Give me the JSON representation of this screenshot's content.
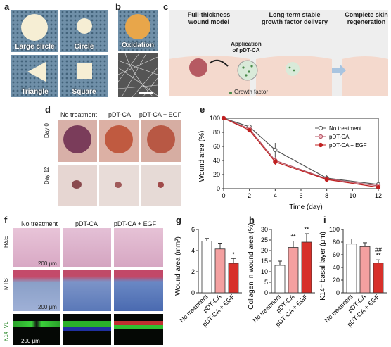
{
  "panels": {
    "a": "a",
    "b": "b",
    "c": "c",
    "d": "d",
    "e": "e",
    "f": "f",
    "g": "g",
    "h": "h",
    "i": "i"
  },
  "a": {
    "labels": [
      "Large circle",
      "Circle",
      "Triangle",
      "Square"
    ]
  },
  "b": {
    "label": "Oxidation"
  },
  "c": {
    "step1": "Full-thickness\nwound model",
    "step2": "Long-term stable\ngrowth factor delivery",
    "step3": "Complete skin\nregeneration",
    "application": "Application\nof pDT-CA",
    "legend": "Growth factor"
  },
  "d": {
    "columns": [
      "No treatment",
      "pDT-CA",
      "pDT-CA + EGF"
    ],
    "rows": [
      "Day 0",
      "Day 12"
    ]
  },
  "f": {
    "columns": [
      "No treatment",
      "pDT-CA",
      "pDT-CA + EGF"
    ],
    "rows": [
      "H&E",
      "MTS",
      "K14 IVL"
    ],
    "scale": "200 μm"
  },
  "colors": {
    "no_treatment": "#ffffff",
    "pdtca": "#f4a0a0",
    "egf": "#d7302a",
    "line_nt": "#555555",
    "line_pdt": "#b05060",
    "line_egf": "#c02020"
  },
  "chart_data": [
    {
      "type": "line",
      "panel": "e",
      "xlabel": "Time (day)",
      "ylabel": "Wound area (%)",
      "x": [
        0,
        2,
        4,
        8,
        12
      ],
      "xlim": [
        0,
        12
      ],
      "ylim": [
        0,
        100
      ],
      "xticks": [
        0,
        2,
        4,
        6,
        8,
        10,
        12
      ],
      "yticks": [
        0,
        20,
        40,
        60,
        80,
        100
      ],
      "legend_position": "top-right",
      "series": [
        {
          "name": "No treatment",
          "values": [
            100,
            88,
            55,
            15,
            6
          ],
          "err": [
            0,
            3,
            10,
            4,
            3
          ]
        },
        {
          "name": "pDT-CA",
          "values": [
            100,
            85,
            40,
            14,
            4
          ],
          "err": [
            0,
            3,
            5,
            3,
            2
          ]
        },
        {
          "name": "pDT-CA + EGF",
          "values": [
            100,
            83,
            38,
            13,
            2
          ],
          "err": [
            0,
            3,
            4,
            3,
            2
          ]
        }
      ]
    },
    {
      "type": "bar",
      "panel": "g",
      "ylabel": "Wound area (mm²)",
      "ylim": [
        0,
        6
      ],
      "yticks": [
        0,
        2,
        4,
        6
      ],
      "categories": [
        "No treatment",
        "pDT-CA",
        "pDT-CA + EGF"
      ],
      "values": [
        4.9,
        4.15,
        2.8
      ],
      "err": [
        0.25,
        0.55,
        0.45
      ],
      "marks": [
        "",
        "",
        "*"
      ]
    },
    {
      "type": "bar",
      "panel": "h",
      "ylabel": "Collagen in wound area (%)",
      "ylim": [
        0,
        30
      ],
      "yticks": [
        0,
        5,
        10,
        15,
        20,
        25,
        30
      ],
      "categories": [
        "No treatment",
        "pDT-CA",
        "pDT-CA + EGF"
      ],
      "values": [
        13,
        21.5,
        24
      ],
      "err": [
        2,
        3,
        4
      ],
      "marks": [
        "",
        "**",
        "**"
      ]
    },
    {
      "type": "bar",
      "panel": "i",
      "ylabel": "K14⁺ basal layer (μm)",
      "ylim": [
        0,
        100
      ],
      "yticks": [
        0,
        20,
        40,
        60,
        80,
        100
      ],
      "categories": [
        "No treatment",
        "pDT-CA",
        "pDT-CA + EGF"
      ],
      "values": [
        77,
        73,
        47
      ],
      "err": [
        8,
        6,
        5
      ],
      "marks": [
        "",
        "",
        "##\n**"
      ]
    }
  ]
}
